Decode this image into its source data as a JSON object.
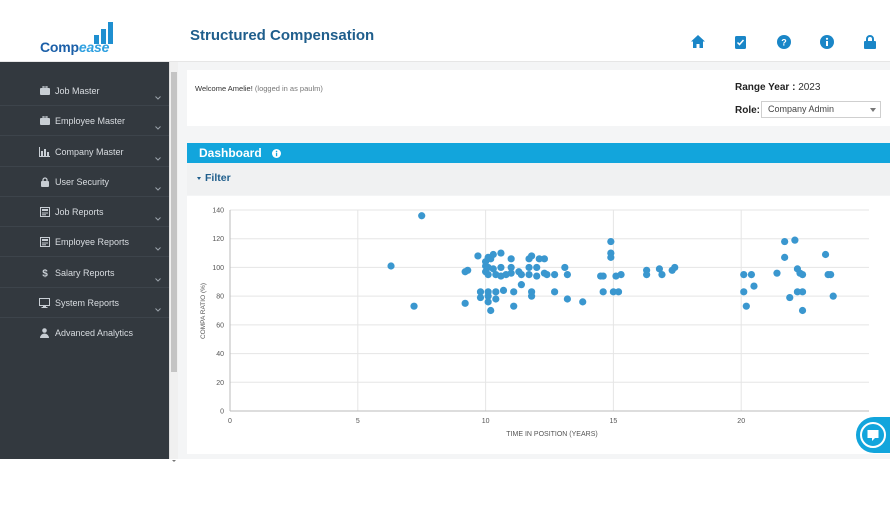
{
  "app": {
    "logo_text_a": "Comp",
    "logo_text_b": "ease",
    "page_title": "Structured Compensation",
    "brand_color": "#1b5fa8",
    "accent_color": "#12a5dc"
  },
  "top_icons": [
    "home-icon",
    "clipboard-check-icon",
    "help-icon",
    "info-icon",
    "lock-icon"
  ],
  "sidebar": {
    "items": [
      {
        "label": "Job Master",
        "icon": "briefcase-icon",
        "has_submenu": true
      },
      {
        "label": "Employee Master",
        "icon": "briefcase-icon",
        "has_submenu": true
      },
      {
        "label": "Company Master",
        "icon": "bar-chart-icon",
        "has_submenu": true
      },
      {
        "label": "User Security",
        "icon": "lock-icon",
        "has_submenu": true
      },
      {
        "label": "Job Reports",
        "icon": "report-icon",
        "has_submenu": true
      },
      {
        "label": "Employee Reports",
        "icon": "report-icon",
        "has_submenu": true
      },
      {
        "label": "Salary Reports",
        "icon": "dollar-icon",
        "has_submenu": true
      },
      {
        "label": "System Reports",
        "icon": "monitor-icon",
        "has_submenu": true
      },
      {
        "label": "Advanced Analytics",
        "icon": "user-icon",
        "has_submenu": false
      }
    ]
  },
  "header_panel": {
    "welcome_prefix": "Welcome Amelie!",
    "welcome_suffix": "(logged in as paulm)",
    "range_label": "Range Year :",
    "range_value": "2023",
    "role_label": "Role:",
    "role_selected": "Company Admin"
  },
  "dashboard": {
    "title": "Dashboard",
    "filter_label": "Filter"
  },
  "chart_data": {
    "type": "scatter",
    "title": "",
    "xlabel": "TIME IN POSITION (YEARS)",
    "ylabel": "COMPA RATIO (%)",
    "xlim": [
      0,
      25
    ],
    "ylim": [
      0,
      140
    ],
    "x_ticks": [
      0,
      5,
      10,
      15,
      20
    ],
    "y_ticks": [
      0,
      20,
      40,
      60,
      80,
      100,
      120,
      140
    ],
    "grid": true,
    "point_color": "#3a97cf",
    "points": [
      [
        6.3,
        101
      ],
      [
        7.2,
        73
      ],
      [
        7.5,
        136
      ],
      [
        9.2,
        75
      ],
      [
        9.2,
        97
      ],
      [
        9.3,
        98
      ],
      [
        9.7,
        108
      ],
      [
        9.8,
        79
      ],
      [
        9.8,
        83
      ],
      [
        10.0,
        101
      ],
      [
        10.0,
        104
      ],
      [
        10.0,
        97
      ],
      [
        10.1,
        107
      ],
      [
        10.1,
        100
      ],
      [
        10.1,
        95
      ],
      [
        10.1,
        83
      ],
      [
        10.1,
        80
      ],
      [
        10.1,
        76
      ],
      [
        10.2,
        70
      ],
      [
        10.2,
        106
      ],
      [
        10.3,
        109
      ],
      [
        10.3,
        99
      ],
      [
        10.4,
        95
      ],
      [
        10.4,
        83
      ],
      [
        10.4,
        78
      ],
      [
        10.6,
        110
      ],
      [
        10.6,
        100
      ],
      [
        10.6,
        94
      ],
      [
        10.7,
        84
      ],
      [
        10.8,
        95
      ],
      [
        11.0,
        106
      ],
      [
        11.0,
        100
      ],
      [
        11.0,
        96
      ],
      [
        11.1,
        83
      ],
      [
        11.1,
        73
      ],
      [
        11.3,
        97
      ],
      [
        11.4,
        95
      ],
      [
        11.4,
        88
      ],
      [
        11.7,
        106
      ],
      [
        11.7,
        100
      ],
      [
        11.7,
        95
      ],
      [
        11.8,
        108
      ],
      [
        11.8,
        83
      ],
      [
        11.8,
        80
      ],
      [
        12.0,
        100
      ],
      [
        12.0,
        94
      ],
      [
        12.1,
        106
      ],
      [
        12.3,
        106
      ],
      [
        12.3,
        96
      ],
      [
        12.4,
        95
      ],
      [
        12.7,
        83
      ],
      [
        12.7,
        95
      ],
      [
        13.1,
        100
      ],
      [
        13.2,
        95
      ],
      [
        13.2,
        78
      ],
      [
        13.8,
        76
      ],
      [
        14.5,
        94
      ],
      [
        14.6,
        94
      ],
      [
        14.6,
        83
      ],
      [
        14.9,
        118
      ],
      [
        14.9,
        110
      ],
      [
        14.9,
        107
      ],
      [
        15.0,
        83
      ],
      [
        15.1,
        94
      ],
      [
        15.2,
        83
      ],
      [
        15.3,
        95
      ],
      [
        16.3,
        98
      ],
      [
        16.3,
        95
      ],
      [
        16.8,
        99
      ],
      [
        16.9,
        95
      ],
      [
        17.3,
        98
      ],
      [
        17.4,
        100
      ],
      [
        20.1,
        95
      ],
      [
        20.1,
        83
      ],
      [
        20.2,
        73
      ],
      [
        20.4,
        95
      ],
      [
        20.5,
        87
      ],
      [
        21.4,
        96
      ],
      [
        21.7,
        118
      ],
      [
        21.7,
        107
      ],
      [
        21.9,
        79
      ],
      [
        22.1,
        119
      ],
      [
        22.2,
        99
      ],
      [
        22.2,
        83
      ],
      [
        22.3,
        96
      ],
      [
        22.4,
        95
      ],
      [
        22.4,
        83
      ],
      [
        22.4,
        70
      ],
      [
        23.3,
        109
      ],
      [
        23.4,
        95
      ],
      [
        23.5,
        95
      ],
      [
        23.6,
        80
      ]
    ]
  }
}
